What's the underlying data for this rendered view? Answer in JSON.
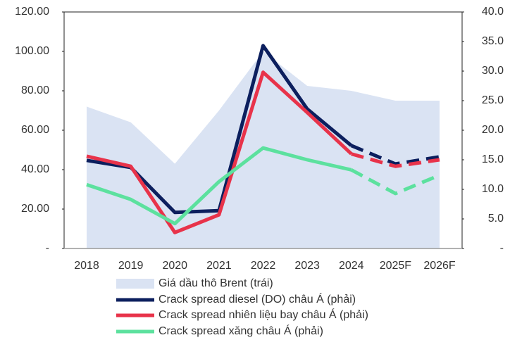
{
  "chart_data": {
    "type": "line",
    "categories": [
      "2018",
      "2019",
      "2020",
      "2021",
      "2022",
      "2023",
      "2024",
      "2025F",
      "2026F"
    ],
    "forecast_start": 6,
    "series": [
      {
        "name": "Giá dầu thô Brent (trái)",
        "kind": "area",
        "axis": "y",
        "color": "#dae3f3",
        "values": [
          72,
          64,
          43,
          70,
          100,
          82.5,
          80,
          75,
          75
        ]
      },
      {
        "name": "Crack spread diesel (DO) châu Á (phải)",
        "axis": "y2",
        "color": "#0c1f5e",
        "values": [
          14.9,
          13.7,
          6.1,
          6.4,
          34.3,
          23.6,
          17.4,
          14.3,
          15.5
        ]
      },
      {
        "name": "Crack spread nhiên liệu bay châu Á (phải)",
        "axis": "y2",
        "color": "#e8334a",
        "values": [
          15.6,
          13.9,
          2.7,
          5.7,
          29.8,
          23,
          16,
          13.9,
          15
        ]
      },
      {
        "name": "Crack spread xăng châu Á (phải)",
        "axis": "y2",
        "color": "#5ce19e",
        "values": [
          10.8,
          8.3,
          4.2,
          11.3,
          17,
          15,
          13.3,
          9.3,
          12.4
        ]
      }
    ],
    "ylim": [
      0,
      120
    ],
    "yticks": [
      {
        "value": 0,
        "label": "-"
      },
      {
        "value": 20,
        "label": "20.00"
      },
      {
        "value": 40,
        "label": "40.00"
      },
      {
        "value": 60,
        "label": "60.00"
      },
      {
        "value": 80,
        "label": "80.00"
      },
      {
        "value": 100,
        "label": "100.00"
      },
      {
        "value": 120,
        "label": "120.00"
      }
    ],
    "y2lim": [
      0,
      40
    ],
    "y2ticks": [
      {
        "value": 0,
        "label": "-"
      },
      {
        "value": 5,
        "label": "5.0"
      },
      {
        "value": 10,
        "label": "10.0"
      },
      {
        "value": 15,
        "label": "15.0"
      },
      {
        "value": 20,
        "label": "20.0"
      },
      {
        "value": 25,
        "label": "25.0"
      },
      {
        "value": 30,
        "label": "30.0"
      },
      {
        "value": 35,
        "label": "35.0"
      },
      {
        "value": 40,
        "label": "40.0"
      }
    ]
  }
}
